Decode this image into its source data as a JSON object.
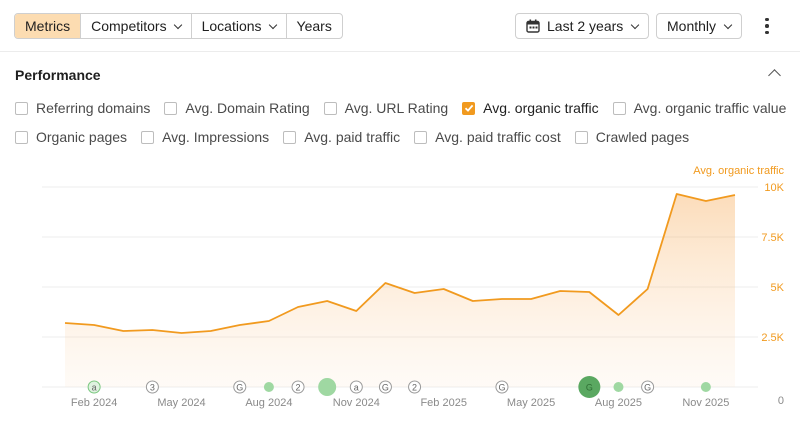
{
  "toolbar": {
    "tabs": [
      {
        "label": "Metrics",
        "active": true
      },
      {
        "label": "Competitors",
        "dropdown": true
      },
      {
        "label": "Locations",
        "dropdown": true
      },
      {
        "label": "Years",
        "dropdown": false
      }
    ],
    "date_range": "Last 2 years",
    "interval": "Monthly"
  },
  "performance": {
    "title": "Performance",
    "metrics_row1": [
      {
        "label": "Referring domains",
        "checked": false
      },
      {
        "label": "Avg. Domain Rating",
        "checked": false
      },
      {
        "label": "Avg. URL Rating",
        "checked": false
      },
      {
        "label": "Avg. organic traffic",
        "checked": true
      },
      {
        "label": "Avg. organic traffic value",
        "checked": false
      }
    ],
    "metrics_row2": [
      {
        "label": "Organic pages",
        "checked": false
      },
      {
        "label": "Avg. Impressions",
        "checked": false
      },
      {
        "label": "Avg. paid traffic",
        "checked": false
      },
      {
        "label": "Avg. paid traffic cost",
        "checked": false
      },
      {
        "label": "Crawled pages",
        "checked": false
      }
    ]
  },
  "colors": {
    "accent": "#f19a1f",
    "active_tab": "#fcdcb1",
    "annotation_green": "#7ac77f"
  },
  "chart_data": {
    "type": "area",
    "series": [
      {
        "name": "Avg. organic traffic",
        "values": [
          3200,
          3100,
          2800,
          2850,
          2700,
          2800,
          3100,
          3300,
          4000,
          4300,
          3800,
          5200,
          4700,
          4900,
          4300,
          4400,
          4400,
          4800,
          4750,
          3600,
          4900,
          9650,
          9300,
          9600
        ]
      }
    ],
    "x_tick_labels": [
      "Feb 2024",
      "May 2024",
      "Aug 2024",
      "Nov 2024",
      "Feb 2025",
      "May 2025",
      "Aug 2025",
      "Nov 2025"
    ],
    "y_tick_labels": [
      "10K",
      "7.5K",
      "5K",
      "2.5K",
      "0"
    ],
    "ylim": [
      0,
      10000
    ],
    "axis_title": "Avg. organic traffic",
    "grid": true,
    "annotations": [
      {
        "month_index": 1,
        "label": "a",
        "kind": "circle-letter",
        "active": true
      },
      {
        "month_index": 3,
        "label": "3",
        "kind": "circle-letter",
        "active": false
      },
      {
        "month_index": 6,
        "label": "G",
        "kind": "circle-letter",
        "active": false
      },
      {
        "month_index": 7,
        "label": "",
        "kind": "green-dot",
        "size": "small"
      },
      {
        "month_index": 8,
        "label": "2",
        "kind": "circle-letter",
        "active": false
      },
      {
        "month_index": 9,
        "label": "",
        "kind": "green-dot",
        "size": "medium"
      },
      {
        "month_index": 10,
        "label": "a",
        "kind": "circle-letter",
        "active": false
      },
      {
        "month_index": 11,
        "label": "G",
        "kind": "circle-letter",
        "active": false
      },
      {
        "month_index": 12,
        "label": "2",
        "kind": "circle-letter",
        "active": false
      },
      {
        "month_index": 15,
        "label": "G",
        "kind": "circle-letter",
        "active": false
      },
      {
        "month_index": 18,
        "label": "G",
        "kind": "green-dot",
        "size": "large"
      },
      {
        "month_index": 19,
        "label": "",
        "kind": "green-dot",
        "size": "small"
      },
      {
        "month_index": 20,
        "label": "G",
        "kind": "circle-letter",
        "active": false
      },
      {
        "month_index": 22,
        "label": "",
        "kind": "green-dot",
        "size": "small"
      }
    ]
  }
}
